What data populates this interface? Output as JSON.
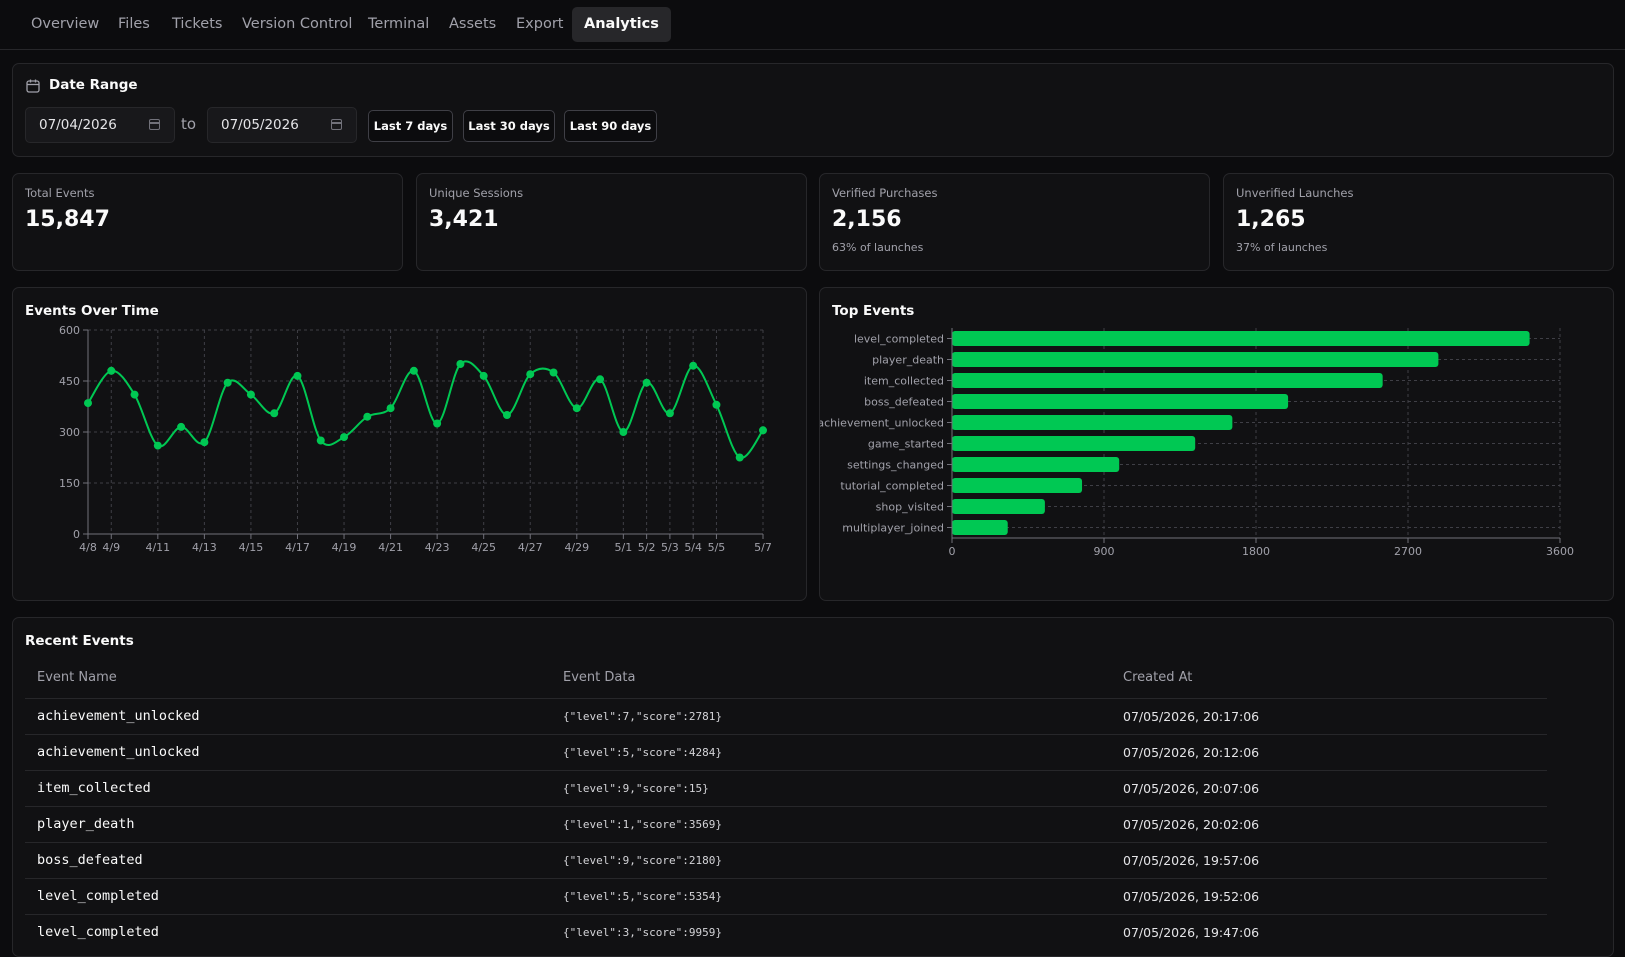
{
  "nav": {
    "tabs": [
      {
        "label": "Overview"
      },
      {
        "label": "Files"
      },
      {
        "label": "Tickets"
      },
      {
        "label": "Version Control"
      },
      {
        "label": "Terminal"
      },
      {
        "label": "Assets"
      },
      {
        "label": "Export"
      },
      {
        "label": "Analytics",
        "active": true
      }
    ]
  },
  "date_range": {
    "title": "Date Range",
    "icon": "calendar-icon",
    "start": "07/04/2026",
    "separator": "to",
    "end": "07/05/2026",
    "presets": [
      "Last 7 days",
      "Last 30 days",
      "Last 90 days"
    ]
  },
  "stats": [
    {
      "label": "Total Events",
      "value": "15,847",
      "sub": ""
    },
    {
      "label": "Unique Sessions",
      "value": "3,421",
      "sub": ""
    },
    {
      "label": "Verified Purchases",
      "value": "2,156",
      "sub": "63% of launches"
    },
    {
      "label": "Unverified Launches",
      "value": "1,265",
      "sub": "37% of launches"
    }
  ],
  "colors": {
    "accent": "#00c853",
    "background": "#0c0c0e",
    "card": "#111113",
    "border": "#27272a"
  },
  "chart_data": [
    {
      "type": "line",
      "title": "Events Over Time",
      "x": [
        "4/8",
        "4/9",
        "4/10",
        "4/11",
        "4/12",
        "4/13",
        "4/14",
        "4/15",
        "4/16",
        "4/17",
        "4/18",
        "4/19",
        "4/20",
        "4/21",
        "4/22",
        "4/23",
        "4/24",
        "4/25",
        "4/26",
        "4/27",
        "4/28",
        "4/29",
        "4/30",
        "5/1",
        "5/2",
        "5/3",
        "5/4",
        "5/5",
        "5/6",
        "5/7"
      ],
      "xticks": [
        "4/8",
        "4/9",
        "4/11",
        "4/13",
        "4/15",
        "4/17",
        "4/19",
        "4/21",
        "4/23",
        "4/25",
        "4/27",
        "4/29",
        "5/1",
        "5/2",
        "5/3",
        "5/4",
        "5/5",
        "5/7"
      ],
      "series": [
        {
          "values": [
            385,
            480,
            410,
            260,
            315,
            270,
            445,
            410,
            355,
            465,
            275,
            285,
            345,
            370,
            480,
            325,
            500,
            465,
            350,
            470,
            475,
            370,
            455,
            300,
            445,
            355,
            495,
            380,
            225,
            305
          ]
        }
      ],
      "ylim": [
        0,
        600
      ],
      "yticks": [
        0,
        150,
        300,
        450,
        600
      ],
      "grid": true
    },
    {
      "type": "bar",
      "orientation": "horizontal",
      "title": "Top Events",
      "categories": [
        "level_completed",
        "player_death",
        "item_collected",
        "boss_defeated",
        "achievement_unlocked",
        "game_started",
        "settings_changed",
        "tutorial_completed",
        "shop_visited",
        "multiplayer_joined"
      ],
      "values": [
        3420,
        2880,
        2550,
        1990,
        1660,
        1440,
        990,
        770,
        550,
        330
      ],
      "xlim": [
        0,
        3600
      ],
      "xticks": [
        0,
        900,
        1800,
        2700,
        3600
      ],
      "grid": true
    }
  ],
  "recent": {
    "title": "Recent Events",
    "columns": [
      "Event Name",
      "Event Data",
      "Created At"
    ],
    "rows": [
      {
        "name": "achievement_unlocked",
        "data": "{\"level\":7,\"score\":2781}",
        "created": "07/05/2026, 20:17:06"
      },
      {
        "name": "achievement_unlocked",
        "data": "{\"level\":5,\"score\":4284}",
        "created": "07/05/2026, 20:12:06"
      },
      {
        "name": "item_collected",
        "data": "{\"level\":9,\"score\":15}",
        "created": "07/05/2026, 20:07:06"
      },
      {
        "name": "player_death",
        "data": "{\"level\":1,\"score\":3569}",
        "created": "07/05/2026, 20:02:06"
      },
      {
        "name": "boss_defeated",
        "data": "{\"level\":9,\"score\":2180}",
        "created": "07/05/2026, 19:57:06"
      },
      {
        "name": "level_completed",
        "data": "{\"level\":5,\"score\":5354}",
        "created": "07/05/2026, 19:52:06"
      },
      {
        "name": "level_completed",
        "data": "{\"level\":3,\"score\":9959}",
        "created": "07/05/2026, 19:47:06"
      }
    ]
  }
}
